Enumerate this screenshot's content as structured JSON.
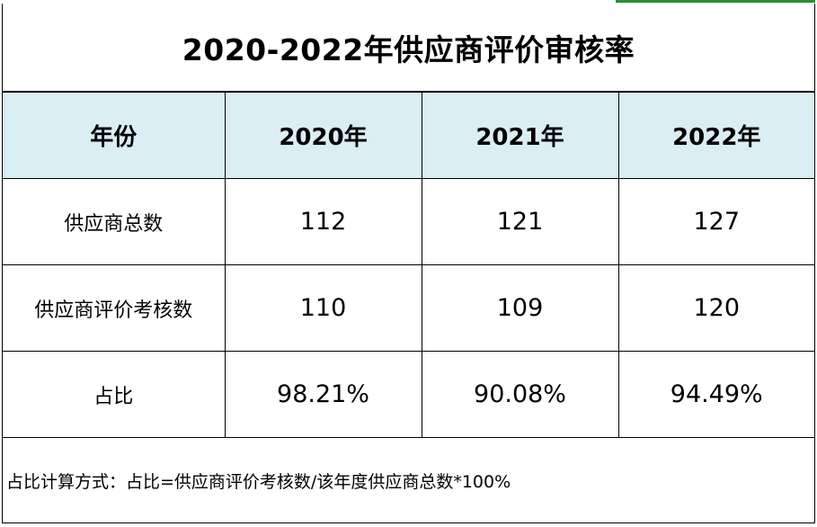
{
  "title": "2020-2022年供应商评价审核率",
  "header": {
    "label": "年份",
    "years": [
      "2020年",
      "2021年",
      "2022年"
    ]
  },
  "rows": [
    {
      "label": "供应商总数",
      "values": [
        "112",
        "121",
        "127"
      ]
    },
    {
      "label": "供应商评价考核数",
      "values": [
        "110",
        "109",
        "120"
      ]
    },
    {
      "label": "占比",
      "values": [
        "98.21%",
        "90.08%",
        "94.49%"
      ]
    }
  ],
  "note": "占比计算方式：占比=供应商评价考核数/该年度供应商总数*100%",
  "colors": {
    "header_bg": "#daeef3",
    "border": "#000000",
    "accent": "#2e8b3e"
  }
}
